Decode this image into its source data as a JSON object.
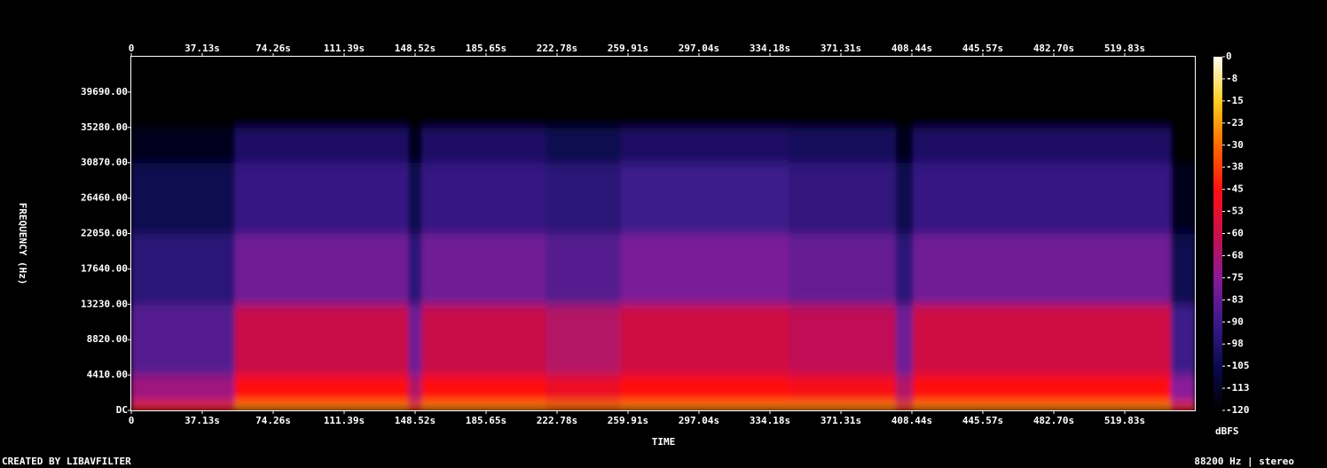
{
  "chart_data": {
    "type": "spectrogram",
    "x_label": "TIME",
    "y_label": "FREQUENCY (Hz)",
    "colorbar_label": "dBFS",
    "footer_left": "CREATED BY LIBAVFILTER",
    "footer_right": "88200 Hz | stereo",
    "xlim": [
      0,
      556.5
    ],
    "xticks": [
      {
        "value": 0,
        "label": "0"
      },
      {
        "value": 37.13,
        "label": "37.13s"
      },
      {
        "value": 74.26,
        "label": "74.26s"
      },
      {
        "value": 111.39,
        "label": "111.39s"
      },
      {
        "value": 148.52,
        "label": "148.52s"
      },
      {
        "value": 185.65,
        "label": "185.65s"
      },
      {
        "value": 222.78,
        "label": "222.78s"
      },
      {
        "value": 259.91,
        "label": "259.91s"
      },
      {
        "value": 297.04,
        "label": "297.04s"
      },
      {
        "value": 334.18,
        "label": "334.18s"
      },
      {
        "value": 371.31,
        "label": "371.31s"
      },
      {
        "value": 408.44,
        "label": "408.44s"
      },
      {
        "value": 445.57,
        "label": "445.57s"
      },
      {
        "value": 482.7,
        "label": "482.70s"
      },
      {
        "value": 519.83,
        "label": "519.83s"
      }
    ],
    "ylim": [
      0,
      44100
    ],
    "yticks": [
      {
        "value": 0,
        "label": "DC"
      },
      {
        "value": 4410,
        "label": "4410.00"
      },
      {
        "value": 8820,
        "label": "8820.00"
      },
      {
        "value": 13230,
        "label": "13230.00"
      },
      {
        "value": 17640,
        "label": "17640.00"
      },
      {
        "value": 22050,
        "label": "22050.00"
      },
      {
        "value": 26460,
        "label": "26460.00"
      },
      {
        "value": 30870,
        "label": "30870.00"
      },
      {
        "value": 35280,
        "label": "35280.00"
      },
      {
        "value": 39690,
        "label": "39690.00"
      }
    ],
    "clim": [
      -120,
      0
    ],
    "cticks": [
      0,
      {
        "value": -7.5,
        "label": "-8"
      },
      -15,
      {
        "value": -22.5,
        "label": "-23"
      },
      -30,
      {
        "value": -37.5,
        "label": "-38"
      },
      -45,
      {
        "value": -52.5,
        "label": "-53"
      },
      -60,
      {
        "value": -67.5,
        "label": "-68"
      },
      -75,
      {
        "value": -82.5,
        "label": "-83"
      },
      -90,
      {
        "value": -97.5,
        "label": "-98"
      },
      -105,
      {
        "value": -112.5,
        "label": "-113"
      },
      -120
    ],
    "time_bins": [
      0,
      54,
      145,
      152,
      217,
      256,
      344,
      400,
      409,
      544,
      556.5
    ],
    "freq_bins": [
      0,
      1000,
      4410,
      13230,
      22050,
      30870,
      35280,
      44100
    ],
    "db": [
      [
        -40,
        -70,
        -85,
        -95,
        -105,
        -115,
        -120
      ],
      [
        -25,
        -45,
        -60,
        -80,
        -92,
        -100,
        -120
      ],
      [
        -35,
        -65,
        -80,
        -95,
        -105,
        -115,
        -120
      ],
      [
        -25,
        -45,
        -60,
        -80,
        -92,
        -100,
        -120
      ],
      [
        -28,
        -50,
        -65,
        -85,
        -95,
        -105,
        -120
      ],
      [
        -25,
        -45,
        -58,
        -78,
        -90,
        -100,
        -120
      ],
      [
        -25,
        -47,
        -62,
        -82,
        -93,
        -102,
        -120
      ],
      [
        -35,
        -65,
        -80,
        -95,
        -105,
        -115,
        -120
      ],
      [
        -25,
        -45,
        -58,
        -80,
        -92,
        -100,
        -120
      ],
      [
        -40,
        -75,
        -90,
        -105,
        -115,
        -120,
        -120
      ]
    ]
  }
}
